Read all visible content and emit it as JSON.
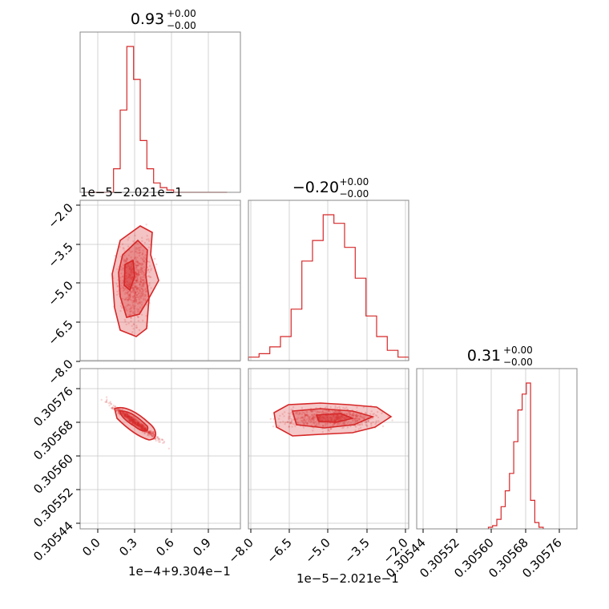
{
  "chart_data": {
    "type": "corner",
    "color": "#d62728",
    "grid": true,
    "panels": [
      {
        "kind": "histogram",
        "row": 0,
        "col": 0,
        "title": {
          "value": "0.93",
          "upper": "+0.00",
          "lower": "−0.00"
        },
        "xlim": [
          -0.1,
          1.1
        ],
        "bin_edges": [
          -0.05,
          0.0,
          0.05,
          0.1,
          0.15,
          0.2,
          0.25,
          0.3,
          0.35,
          0.4,
          0.45,
          0.5,
          0.55,
          0.6,
          0.65,
          0.7,
          0.75,
          0.8,
          0.85,
          0.9,
          0.95,
          1.0
        ],
        "counts": [
          0,
          0,
          0,
          0,
          10,
          35,
          62,
          48,
          22,
          10,
          4,
          2,
          1,
          0,
          0,
          0,
          0,
          0,
          0,
          0,
          0
        ]
      },
      {
        "kind": "histogram",
        "row": 1,
        "col": 1,
        "title": {
          "value": "−0.20",
          "upper": "+0.00",
          "lower": "−0.00"
        },
        "xlim": [
          -8.0,
          -2.0
        ],
        "bin_edges": [
          -8.0,
          -7.6,
          -7.2,
          -6.8,
          -6.4,
          -6.0,
          -5.6,
          -5.2,
          -4.8,
          -4.4,
          -4.0,
          -3.6,
          -3.2,
          -2.8,
          -2.4,
          -2.0
        ],
        "counts": [
          2,
          4,
          8,
          14,
          30,
          58,
          70,
          85,
          80,
          66,
          48,
          26,
          14,
          6,
          2
        ]
      },
      {
        "kind": "histogram",
        "row": 2,
        "col": 2,
        "title": {
          "value": "0.31",
          "upper": "+0.00",
          "lower": "−0.00"
        },
        "xlim": [
          0.30541,
          0.30579
        ],
        "bin_edges": [
          0.30558,
          0.30559,
          0.3056,
          0.30561,
          0.30562,
          0.30563,
          0.30564,
          0.30565,
          0.30566,
          0.30567,
          0.30568,
          0.30569,
          0.3057,
          0.30571
        ],
        "counts": [
          1,
          2,
          6,
          14,
          24,
          35,
          55,
          75,
          85,
          92,
          18,
          4,
          1
        ]
      },
      {
        "kind": "scatter",
        "row": 1,
        "col": 0,
        "pattern": "cloud"
      },
      {
        "kind": "scatter",
        "row": 2,
        "col": 0,
        "pattern": "diagonal"
      },
      {
        "kind": "scatter",
        "row": 2,
        "col": 1,
        "pattern": "band"
      }
    ],
    "ticks": {
      "x_col0": [
        "0.0",
        "0.3",
        "0.6",
        "0.9"
      ],
      "x_col1": [
        "−8.0",
        "−6.5",
        "−5.0",
        "−3.5",
        "−2.0"
      ],
      "x_col2": [
        "0.30544",
        "0.30552",
        "0.30560",
        "0.30568",
        "0.30576"
      ],
      "y_row1": [
        "−2.0",
        "−3.5",
        "−5.0",
        "−6.5",
        "−8.0"
      ],
      "y_row2": [
        "0.30576",
        "0.30568",
        "0.30560",
        "0.30552",
        "0.30544"
      ]
    },
    "offsets": {
      "x_col0": "1e−4+9.304e−1",
      "x_col1": "1e−5−2.021e−1",
      "y_row1": "1e−5−2.021e−1"
    }
  }
}
